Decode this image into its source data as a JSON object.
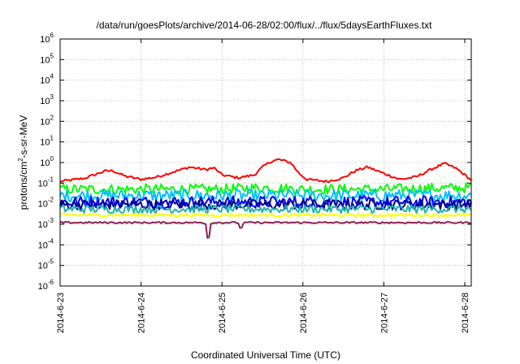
{
  "chart_data": {
    "type": "line",
    "title": "/data/run/goesPlots/archive/2014-06-28/02:00/flux/../flux/5daysEarthFluxes.txt",
    "xlabel": "Coordinated Universal Time (UTC)",
    "ylabel_parts": {
      "pre": "protons/cm",
      "sup": "2",
      "post": "-s-sr-MeV"
    },
    "y_scale": "log",
    "ylim_exp": [
      -6,
      6
    ],
    "y_ticks": [
      {
        "base": "10",
        "exp": "-6"
      },
      {
        "base": "10",
        "exp": "-5"
      },
      {
        "base": "10",
        "exp": "-4"
      },
      {
        "base": "10",
        "exp": "-3"
      },
      {
        "base": "10",
        "exp": "-2"
      },
      {
        "base": "10",
        "exp": "-1"
      },
      {
        "base": "10",
        "exp": "0"
      },
      {
        "base": "10",
        "exp": "1"
      },
      {
        "base": "10",
        "exp": "2"
      },
      {
        "base": "10",
        "exp": "3"
      },
      {
        "base": "10",
        "exp": "4"
      },
      {
        "base": "10",
        "exp": "5"
      },
      {
        "base": "10",
        "exp": "6"
      }
    ],
    "x_ticks": [
      "2014-6-23",
      "2014-6-24",
      "2014-6-25",
      "2014-6-26",
      "2014-6-27",
      "2014-6-28"
    ],
    "x_range_days": [
      0,
      5.08
    ],
    "grid": true,
    "legend": "none",
    "series": [
      {
        "color": "#ff0000",
        "noise": 0.06,
        "x": [
          0,
          0.3,
          0.55,
          0.65,
          0.8,
          1.0,
          1.2,
          1.4,
          1.6,
          1.8,
          1.9,
          2.0,
          2.2,
          2.4,
          2.5,
          2.6,
          2.7,
          2.85,
          2.95,
          3.05,
          3.3,
          3.5,
          3.65,
          3.8,
          3.95,
          4.2,
          4.4,
          4.6,
          4.75,
          4.9,
          5.08
        ],
        "y": [
          0.12,
          0.17,
          0.38,
          0.4,
          0.22,
          0.15,
          0.2,
          0.35,
          0.6,
          0.45,
          0.55,
          0.25,
          0.18,
          0.25,
          0.6,
          1.1,
          1.4,
          1.0,
          0.3,
          0.15,
          0.12,
          0.18,
          0.4,
          0.6,
          0.35,
          0.15,
          0.2,
          0.5,
          0.9,
          0.5,
          0.14
        ]
      },
      {
        "color": "#00ff00",
        "noise": 0.25,
        "x": [
          0,
          2.0,
          2.5,
          3.0,
          3.5,
          4.0,
          5.08
        ],
        "y": [
          0.05,
          0.05,
          0.06,
          0.05,
          0.05,
          0.05,
          0.06
        ]
      },
      {
        "color": "#00bfff",
        "noise": 0.3,
        "x": [
          0,
          5.08
        ],
        "y": [
          0.025,
          0.025
        ]
      },
      {
        "color": "#0000ff",
        "noise": 0.3,
        "x": [
          0,
          5.08
        ],
        "y": [
          0.012,
          0.012
        ]
      },
      {
        "color": "#00008b",
        "noise": 0.25,
        "x": [
          0,
          5.08
        ],
        "y": [
          0.009,
          0.009
        ]
      },
      {
        "color": "#20b2aa",
        "noise": 0.2,
        "x": [
          0,
          5.08
        ],
        "y": [
          0.0055,
          0.0055
        ]
      },
      {
        "color": "#ffff00",
        "noise": 0.08,
        "x": [
          0,
          5.08
        ],
        "y": [
          0.0028,
          0.0028
        ]
      },
      {
        "color": "#8b2252",
        "noise": 0.04,
        "x": [
          0,
          1.75,
          1.8,
          1.83,
          1.86,
          1.9,
          2.2,
          2.23,
          2.26,
          2.3,
          5.08
        ],
        "y": [
          0.0012,
          0.0012,
          0.0011,
          0.0001,
          0.0011,
          0.0012,
          0.0012,
          0.0005,
          0.0011,
          0.0012,
          0.0012
        ]
      }
    ]
  }
}
